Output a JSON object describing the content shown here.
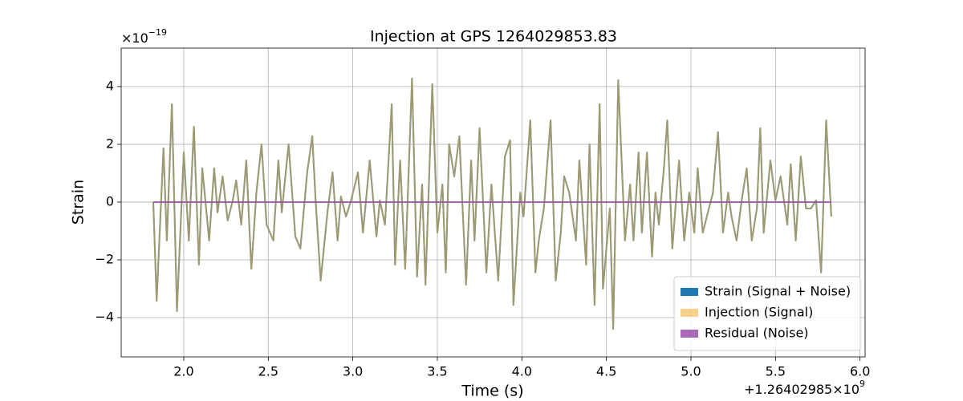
{
  "chart_data": {
    "type": "line",
    "title": "Injection at GPS 1264029853.83",
    "xlabel": "Time (s)",
    "ylabel": "Strain",
    "y_scale_label": {
      "base": "×10",
      "exponent": "−19"
    },
    "x_offset_label": {
      "base": "+1.26402985×10",
      "exponent": "9"
    },
    "xlim": [
      1.63,
      6.03
    ],
    "ylim": [
      -5.36,
      5.33
    ],
    "xticks": [
      {
        "value": 2,
        "label": "2.0"
      },
      {
        "value": 2.5,
        "label": "2.5"
      },
      {
        "value": 3,
        "label": "3.0"
      },
      {
        "value": 3.5,
        "label": "3.5"
      },
      {
        "value": 4,
        "label": "4.0"
      },
      {
        "value": 4.5,
        "label": "4.5"
      },
      {
        "value": 5,
        "label": "5.0"
      },
      {
        "value": 5.5,
        "label": "5.5"
      },
      {
        "value": 6,
        "label": "6.0"
      }
    ],
    "yticks": [
      {
        "value": -4,
        "label": "−4"
      },
      {
        "value": -2,
        "label": "−2"
      },
      0,
      2,
      4
    ],
    "grid": true,
    "legend": "lower right",
    "series": [
      {
        "name": "Strain (Signal + Noise)",
        "color": "#1f77b4",
        "alpha": 1,
        "x": [
          1.82,
          1.84,
          1.88,
          1.9,
          1.93,
          1.96,
          2.0,
          2.03,
          2.06,
          2.09,
          2.11,
          2.15,
          2.18,
          2.2,
          2.23,
          2.26,
          2.29,
          2.31,
          2.34,
          2.37,
          2.4,
          2.43,
          2.46,
          2.49,
          2.53,
          2.56,
          2.58,
          2.62,
          2.66,
          2.69,
          2.73,
          2.76,
          2.78,
          2.81,
          2.85,
          2.88,
          2.91,
          2.93,
          2.96,
          2.99,
          3.03,
          3.06,
          3.1,
          3.14,
          3.16,
          3.19,
          3.23,
          3.25,
          3.28,
          3.31,
          3.35,
          3.38,
          3.41,
          3.43,
          3.47,
          3.5,
          3.53,
          3.55,
          3.57,
          3.6,
          3.63,
          3.67,
          3.7,
          3.72,
          3.75,
          3.79,
          3.82,
          3.86,
          3.9,
          3.93,
          3.95,
          3.99,
          4.01,
          4.05,
          4.08,
          4.1,
          4.13,
          4.17,
          4.2,
          4.23,
          4.25,
          4.28,
          4.32,
          4.34,
          4.38,
          4.4,
          4.43,
          4.46,
          4.48,
          4.52,
          4.54,
          4.57,
          4.61,
          4.64,
          4.66,
          4.69,
          4.71,
          4.74,
          4.77,
          4.79,
          4.81,
          4.84,
          4.86,
          4.89,
          4.93,
          4.96,
          4.99,
          5.02,
          5.04,
          5.07,
          5.1,
          5.13,
          5.16,
          5.19,
          5.22,
          5.24,
          5.27,
          5.3,
          5.33,
          5.36,
          5.39,
          5.41,
          5.43,
          5.47,
          5.5,
          5.53,
          5.57,
          5.59,
          5.62,
          5.65,
          5.68,
          5.71,
          5.74,
          5.77,
          5.8,
          5.83
        ],
        "values": [
          0,
          -3.42,
          1.86,
          -1.33,
          3.39,
          -3.78,
          1.72,
          -1.33,
          2.61,
          -2.17,
          1.17,
          -1.33,
          1.17,
          -0.36,
          0.89,
          -0.64,
          0.06,
          0.75,
          -0.78,
          1.44,
          -2.31,
          0.33,
          2.0,
          -0.78,
          -1.33,
          1.44,
          -0.36,
          2.0,
          -1.19,
          -1.61,
          1.03,
          2.28,
          0.06,
          -2.72,
          -0.36,
          1.03,
          -1.33,
          0.19,
          -0.5,
          0.06,
          1.03,
          -1.06,
          1.44,
          -1.19,
          0.06,
          -0.78,
          3.39,
          -2.17,
          1.44,
          -2.31,
          4.28,
          -2.58,
          0.61,
          -2.86,
          4.08,
          -1.06,
          0.61,
          -2.44,
          2.0,
          0.89,
          2.28,
          -2.86,
          1.44,
          -1.33,
          2.56,
          -2.44,
          0.61,
          -2.72,
          1.58,
          2.14,
          -3.56,
          0.33,
          -0.5,
          2.83,
          -2.44,
          -1.33,
          -0.22,
          2.83,
          -2.72,
          -1.06,
          0.89,
          0.33,
          -1.33,
          1.44,
          -2.17,
          2.0,
          -3.56,
          3.39,
          -3.0,
          -0.22,
          -4.39,
          4.22,
          -1.33,
          0.61,
          -1.33,
          1.72,
          -1.06,
          1.72,
          -1.89,
          0.33,
          -0.78,
          1.17,
          2.83,
          -1.61,
          1.44,
          -1.33,
          0.33,
          -1.06,
          1.17,
          -1.06,
          -0.36,
          0.33,
          2.42,
          -1.06,
          0.33,
          -0.5,
          -1.33,
          0.06,
          1.17,
          -1.33,
          -0.22,
          2.56,
          -1.06,
          1.44,
          0.06,
          0.89,
          -0.78,
          1.31,
          -1.33,
          1.58,
          -0.22,
          -0.22,
          0.06,
          -2.44,
          2.83,
          -0.5
        ]
      },
      {
        "name": "Injection (Signal)",
        "color": "#f5b041",
        "alpha": 0.6,
        "x": [
          1.82,
          1.84,
          1.88,
          1.9,
          1.93,
          1.96,
          2.0,
          2.03,
          2.06,
          2.09,
          2.11,
          2.15,
          2.18,
          2.2,
          2.23,
          2.26,
          2.29,
          2.31,
          2.34,
          2.37,
          2.4,
          2.43,
          2.46,
          2.49,
          2.53,
          2.56,
          2.58,
          2.62,
          2.66,
          2.69,
          2.73,
          2.76,
          2.78,
          2.81,
          2.85,
          2.88,
          2.91,
          2.93,
          2.96,
          2.99,
          3.03,
          3.06,
          3.1,
          3.14,
          3.16,
          3.19,
          3.23,
          3.25,
          3.28,
          3.31,
          3.35,
          3.38,
          3.41,
          3.43,
          3.47,
          3.5,
          3.53,
          3.55,
          3.57,
          3.6,
          3.63,
          3.67,
          3.7,
          3.72,
          3.75,
          3.79,
          3.82,
          3.86,
          3.9,
          3.93,
          3.95,
          3.99,
          4.01,
          4.05,
          4.08,
          4.1,
          4.13,
          4.17,
          4.2,
          4.23,
          4.25,
          4.28,
          4.32,
          4.34,
          4.38,
          4.4,
          4.43,
          4.46,
          4.48,
          4.52,
          4.54,
          4.57,
          4.61,
          4.64,
          4.66,
          4.69,
          4.71,
          4.74,
          4.77,
          4.79,
          4.81,
          4.84,
          4.86,
          4.89,
          4.93,
          4.96,
          4.99,
          5.02,
          5.04,
          5.07,
          5.1,
          5.13,
          5.16,
          5.19,
          5.22,
          5.24,
          5.27,
          5.3,
          5.33,
          5.36,
          5.39,
          5.41,
          5.43,
          5.47,
          5.5,
          5.53,
          5.57,
          5.59,
          5.62,
          5.65,
          5.68,
          5.71,
          5.74,
          5.77,
          5.8,
          5.83
        ],
        "values": [
          0,
          -3.42,
          1.86,
          -1.33,
          3.39,
          -3.78,
          1.72,
          -1.33,
          2.61,
          -2.17,
          1.17,
          -1.33,
          1.17,
          -0.36,
          0.89,
          -0.64,
          0.06,
          0.75,
          -0.78,
          1.44,
          -2.31,
          0.33,
          2.0,
          -0.78,
          -1.33,
          1.44,
          -0.36,
          2.0,
          -1.19,
          -1.61,
          1.03,
          2.28,
          0.06,
          -2.72,
          -0.36,
          1.03,
          -1.33,
          0.19,
          -0.5,
          0.06,
          1.03,
          -1.06,
          1.44,
          -1.19,
          0.06,
          -0.78,
          3.39,
          -2.17,
          1.44,
          -2.31,
          4.28,
          -2.58,
          0.61,
          -2.86,
          4.08,
          -1.06,
          0.61,
          -2.44,
          2.0,
          0.89,
          2.28,
          -2.86,
          1.44,
          -1.33,
          2.56,
          -2.44,
          0.61,
          -2.72,
          1.58,
          2.14,
          -3.56,
          0.33,
          -0.5,
          2.83,
          -2.44,
          -1.33,
          -0.22,
          2.83,
          -2.72,
          -1.06,
          0.89,
          0.33,
          -1.33,
          1.44,
          -2.17,
          2.0,
          -3.56,
          3.39,
          -3.0,
          -0.22,
          -4.39,
          4.22,
          -1.33,
          0.61,
          -1.33,
          1.72,
          -1.06,
          1.72,
          -1.89,
          0.33,
          -0.78,
          1.17,
          2.83,
          -1.61,
          1.44,
          -1.33,
          0.33,
          -1.06,
          1.17,
          -1.06,
          -0.36,
          0.33,
          2.42,
          -1.06,
          0.33,
          -0.5,
          -1.33,
          0.06,
          1.17,
          -1.33,
          -0.22,
          2.56,
          -1.06,
          1.44,
          0.06,
          0.89,
          -0.78,
          1.31,
          -1.33,
          1.58,
          -0.22,
          -0.22,
          0.06,
          -2.44,
          2.83,
          -0.5
        ]
      },
      {
        "name": "Residual (Noise)",
        "color": "#9b4fa8",
        "alpha": 0.85,
        "x": [
          1.82,
          5.83
        ],
        "values": [
          0,
          0
        ]
      }
    ]
  }
}
